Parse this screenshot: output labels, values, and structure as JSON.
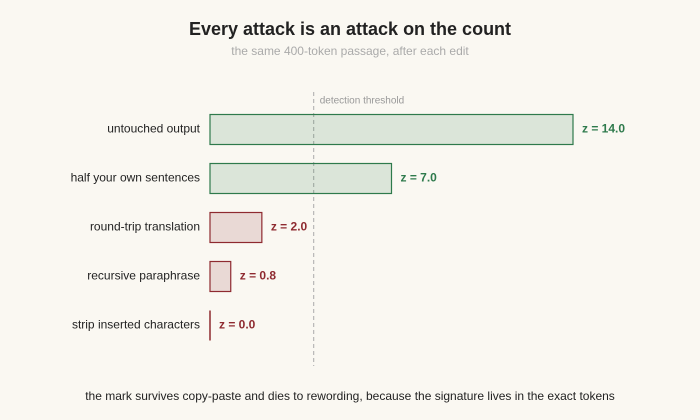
{
  "chart_data": {
    "type": "hbar",
    "title": "Every attack is an attack on the count",
    "subtitle": "the same 400-token passage, after each edit",
    "categories": [
      "untouched output",
      "half your own sentences",
      "round-trip translation",
      "recursive paraphrase",
      "strip inserted characters"
    ],
    "values": [
      14.0,
      7.0,
      2.0,
      0.8,
      0.0
    ],
    "value_labels": [
      "z = 14.0",
      "z = 7.0",
      "z = 2.0",
      "z = 0.8",
      "z = 0.0"
    ],
    "colors": [
      "#2e7a4c",
      "#2e7a4c",
      "#8e2a30",
      "#8e2a30",
      "#8e2a30"
    ],
    "xlim": [
      0,
      14
    ],
    "threshold": {
      "value": 4,
      "label": "detection threshold"
    },
    "note": "the mark survives copy-paste and dies to rewording, because the signature lives in the exact tokens"
  }
}
